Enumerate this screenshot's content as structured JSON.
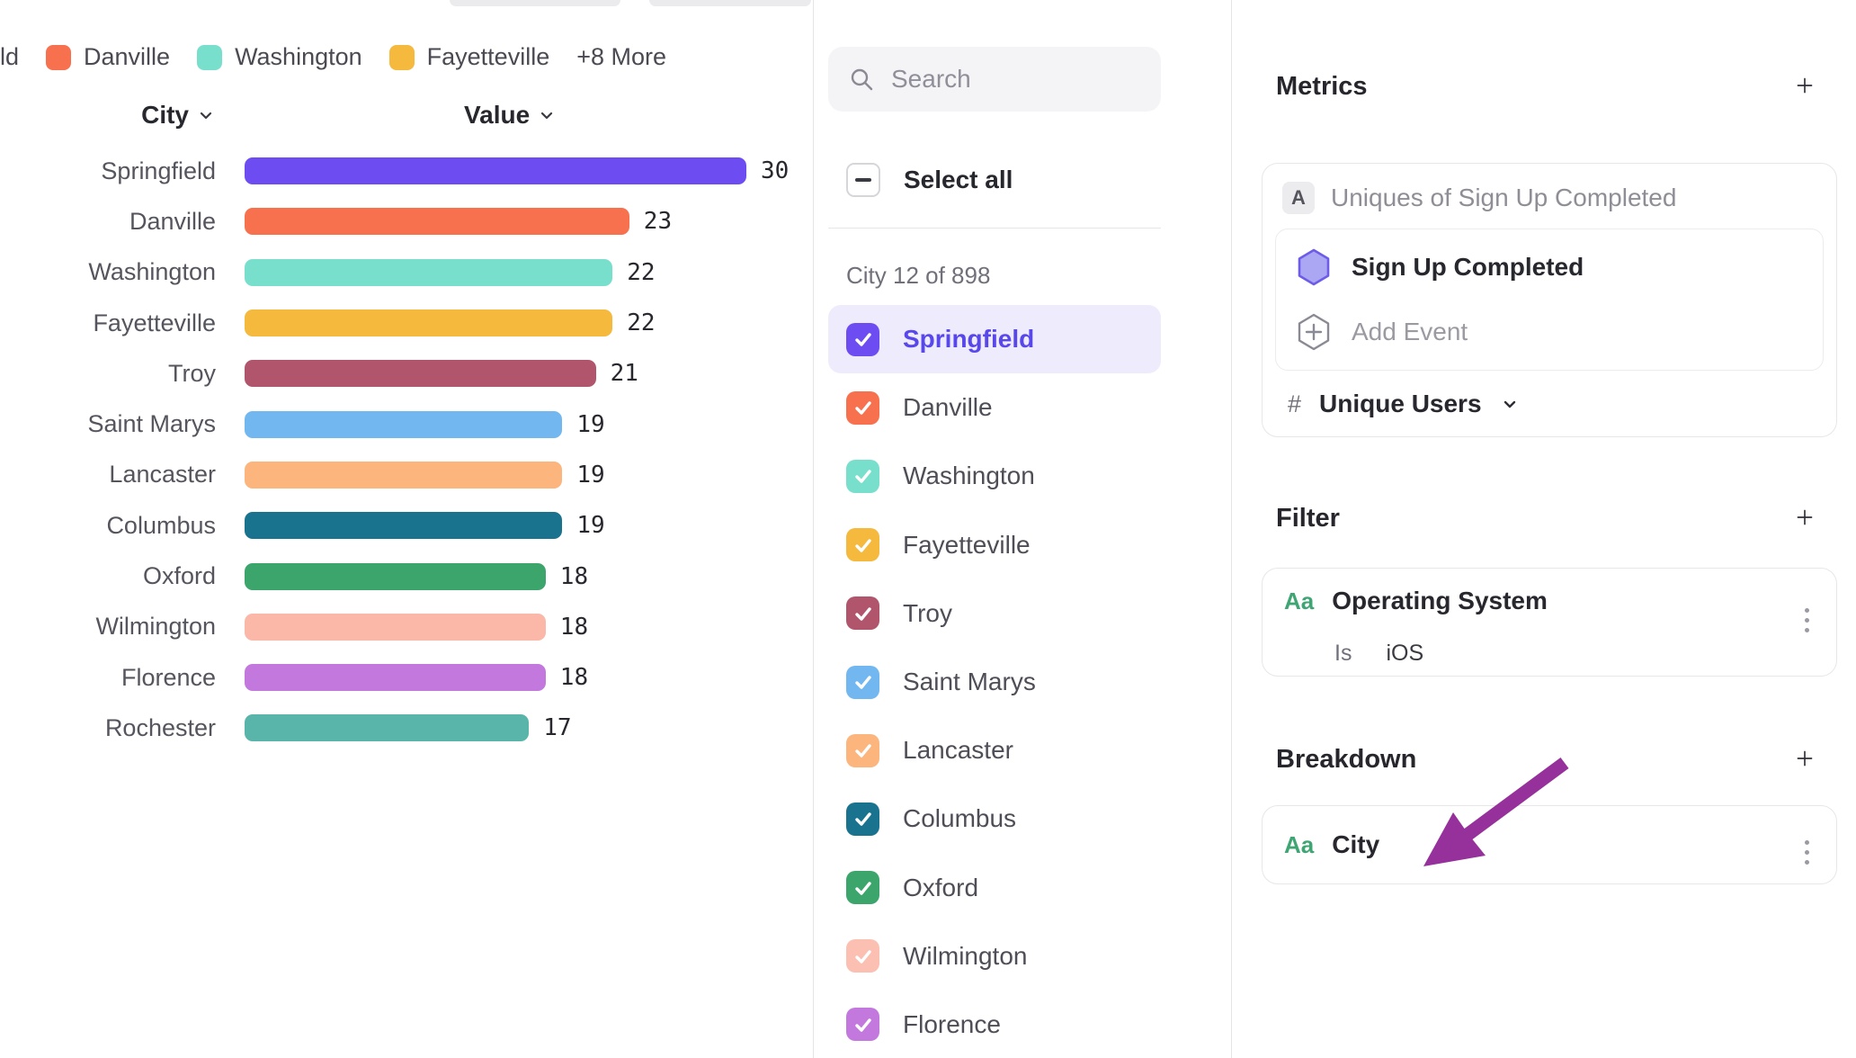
{
  "legend": {
    "truncated_label": "ld",
    "items": [
      {
        "label": "Danville",
        "color": "#F8714F"
      },
      {
        "label": "Washington",
        "color": "#79DFCD"
      },
      {
        "label": "Fayetteville",
        "color": "#F4B93D"
      }
    ],
    "more_label": "+8 More"
  },
  "chart_data": {
    "type": "bar",
    "orientation": "horizontal",
    "title": "",
    "xlabel": "Value",
    "ylabel": "City",
    "columns": {
      "city": "City",
      "value": "Value"
    },
    "categories": [
      "Springfield",
      "Danville",
      "Washington",
      "Fayetteville",
      "Troy",
      "Saint Marys",
      "Lancaster",
      "Columbus",
      "Oxford",
      "Wilmington",
      "Florence",
      "Rochester"
    ],
    "values": [
      30,
      23,
      22,
      22,
      21,
      19,
      19,
      19,
      18,
      18,
      18,
      17
    ],
    "colors": [
      "#6D4DF2",
      "#F8714F",
      "#79DFCD",
      "#F4B93D",
      "#B0556C",
      "#72B7F0",
      "#FBB57D",
      "#19738F",
      "#3BA56B",
      "#FBB7A8",
      "#C378DE",
      "#59B4A9"
    ],
    "xlim": [
      0,
      30
    ],
    "grid": false,
    "legend_position": "top"
  },
  "selector": {
    "search_placeholder": "Search",
    "select_all_label": "Select all",
    "count_label": "City 12 of 898",
    "items": [
      {
        "label": "Springfield",
        "color": "#6D4DF2",
        "checked": true,
        "highlighted": true
      },
      {
        "label": "Danville",
        "color": "#F8714F",
        "checked": true,
        "highlighted": false
      },
      {
        "label": "Washington",
        "color": "#79DFCD",
        "checked": true,
        "highlighted": false
      },
      {
        "label": "Fayetteville",
        "color": "#F4B93D",
        "checked": true,
        "highlighted": false
      },
      {
        "label": "Troy",
        "color": "#B0556C",
        "checked": true,
        "highlighted": false
      },
      {
        "label": "Saint Marys",
        "color": "#72B7F0",
        "checked": true,
        "highlighted": false
      },
      {
        "label": "Lancaster",
        "color": "#FBB57D",
        "checked": true,
        "highlighted": false
      },
      {
        "label": "Columbus",
        "color": "#19738F",
        "checked": true,
        "highlighted": false
      },
      {
        "label": "Oxford",
        "color": "#3BA56B",
        "checked": true,
        "highlighted": false
      },
      {
        "label": "Wilmington",
        "color": "#FBC0B2",
        "checked": true,
        "highlighted": false
      },
      {
        "label": "Florence",
        "color": "#C378DE",
        "checked": true,
        "highlighted": false
      }
    ]
  },
  "inspector": {
    "metrics": {
      "title": "Metrics",
      "badge": "A",
      "metric_label": "Uniques of Sign Up Completed",
      "event_name": "Sign Up Completed",
      "add_event_label": "Add Event",
      "measure_prefix": "#",
      "measure_label": "Unique Users"
    },
    "filter": {
      "title": "Filter",
      "property_type_badge": "Aa",
      "property_name": "Operating System",
      "operator": "Is",
      "value": "iOS"
    },
    "breakdown": {
      "title": "Breakdown",
      "property_type_badge": "Aa",
      "property_name": "City"
    }
  },
  "colors": {
    "accent": "#6D4DF2",
    "highlight_row_bg": "#EEEBFD",
    "highlight_text": "#5847EA",
    "annotation_arrow": "#96309B",
    "badge_green": "#3FA573"
  }
}
